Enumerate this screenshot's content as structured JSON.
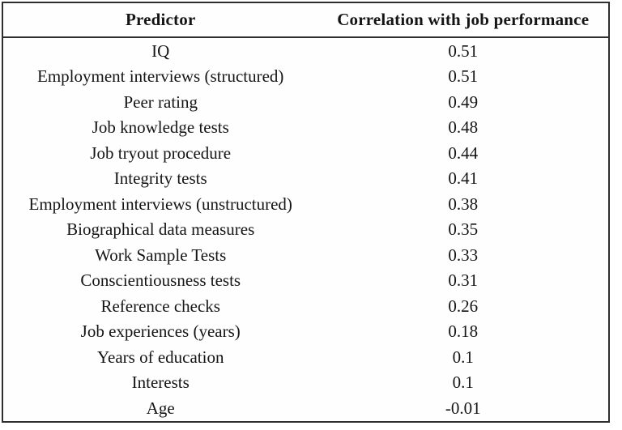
{
  "table": {
    "columns": [
      {
        "label": "Predictor"
      },
      {
        "label": "Correlation with job performance"
      }
    ],
    "rows": [
      {
        "predictor": "IQ",
        "correlation": "0.51"
      },
      {
        "predictor": "Employment interviews (structured)",
        "correlation": "0.51"
      },
      {
        "predictor": "Peer rating",
        "correlation": "0.49"
      },
      {
        "predictor": "Job knowledge tests",
        "correlation": "0.48"
      },
      {
        "predictor": "Job tryout procedure",
        "correlation": "0.44"
      },
      {
        "predictor": "Integrity tests",
        "correlation": "0.41"
      },
      {
        "predictor": "Employment interviews (unstructured)",
        "correlation": "0.38"
      },
      {
        "predictor": "Biographical data measures",
        "correlation": "0.35"
      },
      {
        "predictor": "Work Sample Tests",
        "correlation": "0.33"
      },
      {
        "predictor": "Conscientiousness tests",
        "correlation": "0.31"
      },
      {
        "predictor": "Reference checks",
        "correlation": "0.26"
      },
      {
        "predictor": "Job experiences (years)",
        "correlation": "0.18"
      },
      {
        "predictor": "Years of education",
        "correlation": "0.1"
      },
      {
        "predictor": "Interests",
        "correlation": "0.1"
      },
      {
        "predictor": "Age",
        "correlation": "-0.01"
      }
    ]
  },
  "colors": {
    "border": "#2e2e2e",
    "text": "#151515",
    "background": "#fefefe"
  }
}
